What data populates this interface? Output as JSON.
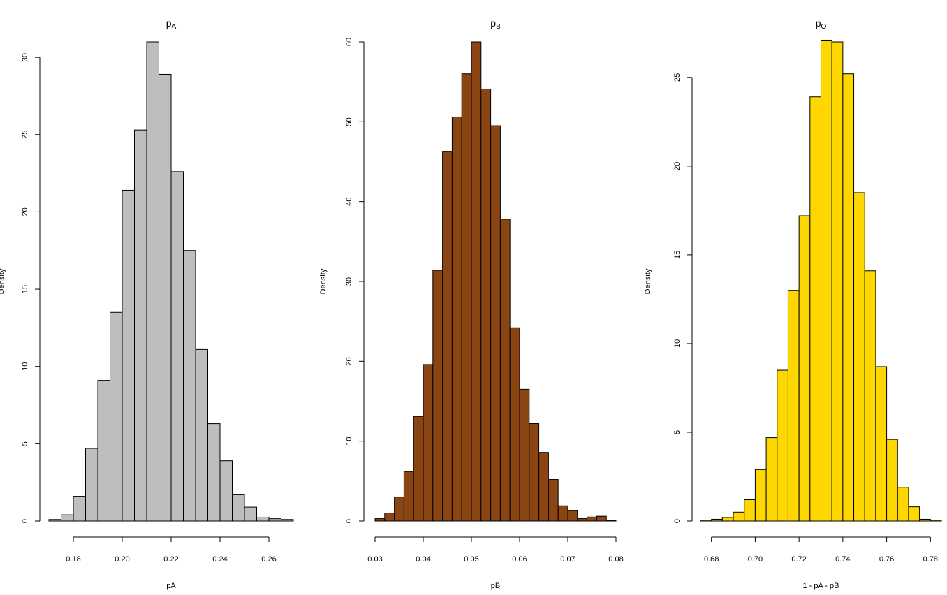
{
  "chart_data": [
    {
      "type": "bar",
      "title": "p",
      "title_subscript": "A",
      "xlabel": "pA",
      "ylabel": "Density",
      "xlim": [
        0.17,
        0.27
      ],
      "ylim": [
        0,
        31
      ],
      "xticks": [
        0.18,
        0.2,
        0.22,
        0.24,
        0.26
      ],
      "xtick_labels": [
        "0.18",
        "0.20",
        "0.22",
        "0.24",
        "0.26"
      ],
      "yticks": [
        0,
        5,
        10,
        15,
        20,
        25,
        30
      ],
      "ytick_labels": [
        "0",
        "5",
        "10",
        "15",
        "20",
        "25",
        "30"
      ],
      "bin_edges": [
        0.17,
        0.175,
        0.18,
        0.185,
        0.19,
        0.195,
        0.2,
        0.205,
        0.21,
        0.215,
        0.22,
        0.225,
        0.23,
        0.235,
        0.24,
        0.245,
        0.25,
        0.255,
        0.26,
        0.265,
        0.27
      ],
      "values": [
        0.1,
        0.4,
        1.6,
        4.7,
        9.1,
        13.5,
        21.4,
        25.3,
        31.0,
        28.9,
        22.6,
        17.5,
        11.1,
        6.3,
        3.9,
        1.7,
        0.9,
        0.25,
        0.15,
        0.1
      ],
      "color": "#bebebe",
      "grid": false
    },
    {
      "type": "bar",
      "title": "p",
      "title_subscript": "B",
      "xlabel": "pB",
      "ylabel": "Density",
      "xlim": [
        0.03,
        0.08
      ],
      "ylim": [
        0,
        60
      ],
      "xticks": [
        0.03,
        0.04,
        0.05,
        0.06,
        0.07,
        0.08
      ],
      "xtick_labels": [
        "0.03",
        "0.04",
        "0.05",
        "0.06",
        "0.07",
        "0.08"
      ],
      "yticks": [
        0,
        10,
        20,
        30,
        40,
        50,
        60
      ],
      "ytick_labels": [
        "0",
        "10",
        "20",
        "30",
        "40",
        "50",
        "60"
      ],
      "bin_edges": [
        0.03,
        0.032,
        0.034,
        0.036,
        0.038,
        0.04,
        0.042,
        0.044,
        0.046,
        0.048,
        0.05,
        0.052,
        0.054,
        0.056,
        0.058,
        0.06,
        0.062,
        0.064,
        0.066,
        0.068,
        0.07,
        0.072,
        0.074,
        0.076,
        0.078,
        0.08
      ],
      "values": [
        0.3,
        1.0,
        3.0,
        6.2,
        13.1,
        19.6,
        31.4,
        46.3,
        50.6,
        56.0,
        60.0,
        54.1,
        49.5,
        37.8,
        24.2,
        16.5,
        12.2,
        8.6,
        5.2,
        1.9,
        1.3,
        0.3,
        0.5,
        0.6,
        0.1
      ],
      "color": "#8b4513",
      "grid": false
    },
    {
      "type": "bar",
      "title": "p",
      "title_subscript": "O",
      "xlabel": "1 - pA - pB",
      "ylabel": "Density",
      "xlim": [
        0.675,
        0.785
      ],
      "ylim": [
        0,
        27
      ],
      "xticks": [
        0.68,
        0.7,
        0.72,
        0.74,
        0.76,
        0.78
      ],
      "xtick_labels": [
        "0.68",
        "0.70",
        "0.72",
        "0.74",
        "0.76",
        "0.78"
      ],
      "yticks": [
        0,
        5,
        10,
        15,
        20,
        25
      ],
      "ytick_labels": [
        "0",
        "5",
        "10",
        "15",
        "20",
        "25"
      ],
      "bin_edges": [
        0.675,
        0.68,
        0.685,
        0.69,
        0.695,
        0.7,
        0.705,
        0.71,
        0.715,
        0.72,
        0.725,
        0.73,
        0.735,
        0.74,
        0.745,
        0.75,
        0.755,
        0.76,
        0.765,
        0.77,
        0.775,
        0.78,
        0.785
      ],
      "values": [
        0.05,
        0.1,
        0.2,
        0.5,
        1.2,
        2.9,
        4.7,
        8.5,
        13.0,
        17.2,
        23.9,
        27.1,
        27.0,
        25.2,
        18.5,
        14.1,
        8.7,
        4.6,
        1.9,
        0.8,
        0.1,
        0.05
      ],
      "color": "#ffd700",
      "grid": false
    }
  ]
}
